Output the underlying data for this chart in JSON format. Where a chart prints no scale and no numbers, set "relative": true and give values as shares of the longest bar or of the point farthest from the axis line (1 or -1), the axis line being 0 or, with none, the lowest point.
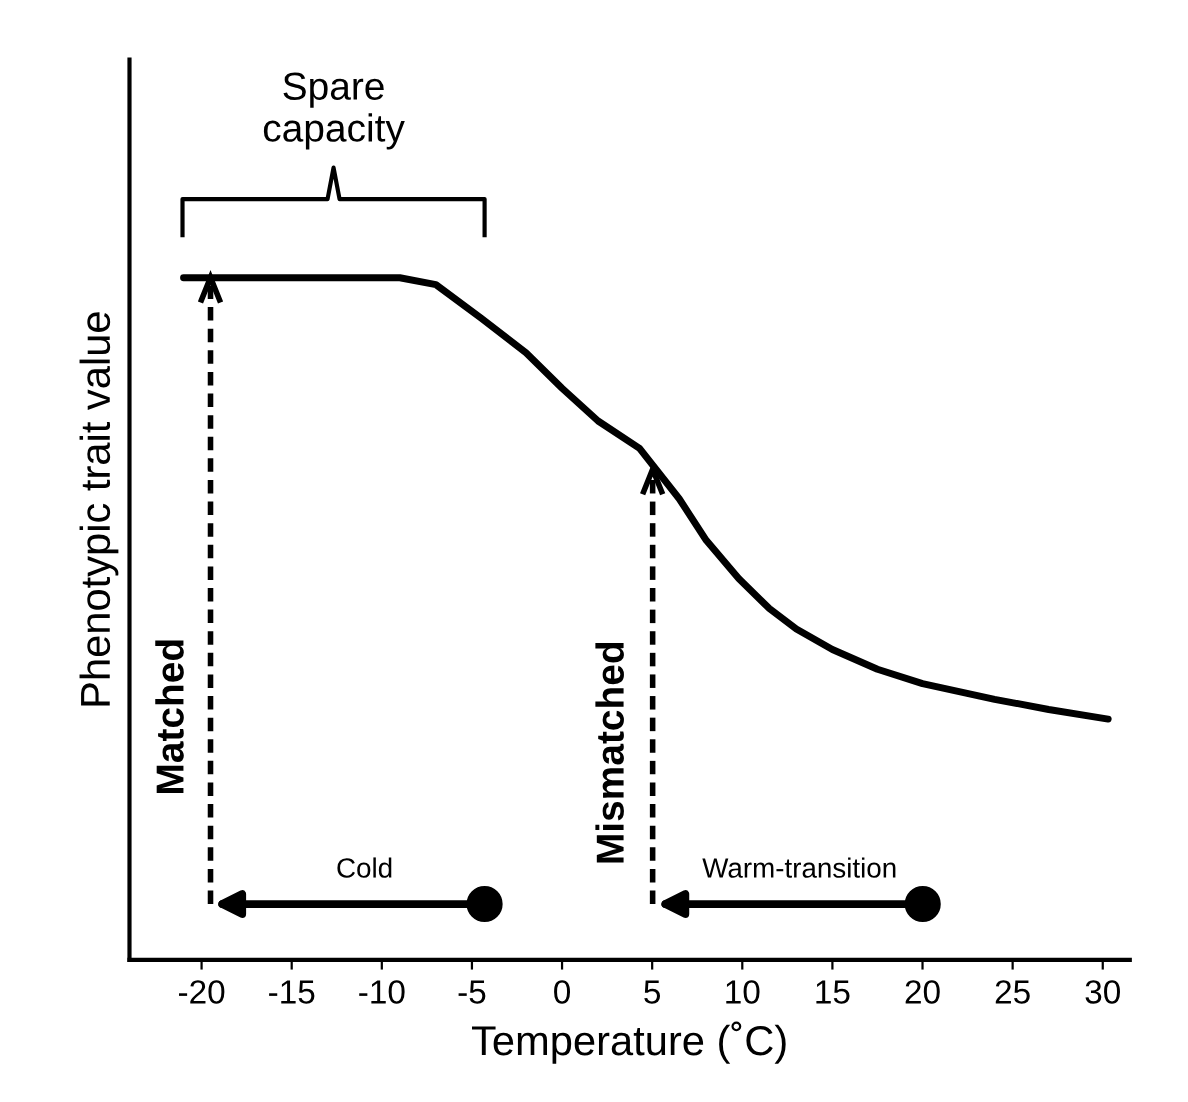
{
  "chart_data": {
    "type": "line",
    "relative": true,
    "xlabel": "Temperature (˚C)",
    "ylabel": "Phenotypic trait value",
    "xlim": [
      -24,
      31.5
    ],
    "xticks": [
      -20,
      -15,
      -10,
      -5,
      0,
      5,
      10,
      15,
      20,
      25,
      30
    ],
    "tick_labels": "x",
    "grid": false,
    "series": [
      {
        "color": "#000000",
        "x": [
          -21,
          -9,
          -7,
          -4.5,
          -2,
          0,
          2,
          4.3,
          6.5,
          8,
          9.8,
          11.5,
          13,
          15,
          17.5,
          20,
          24,
          27,
          30.3
        ],
        "values": [
          1,
          1,
          0.99,
          0.941,
          0.89,
          0.838,
          0.79,
          0.75,
          0.676,
          0.615,
          0.559,
          0.515,
          0.485,
          0.455,
          0.426,
          0.405,
          0.382,
          0.367,
          0.353
        ]
      }
    ],
    "annotations": [
      "Spare capacity",
      "Matched",
      "Mismatched",
      "Cold",
      "Warm-transition"
    ]
  }
}
